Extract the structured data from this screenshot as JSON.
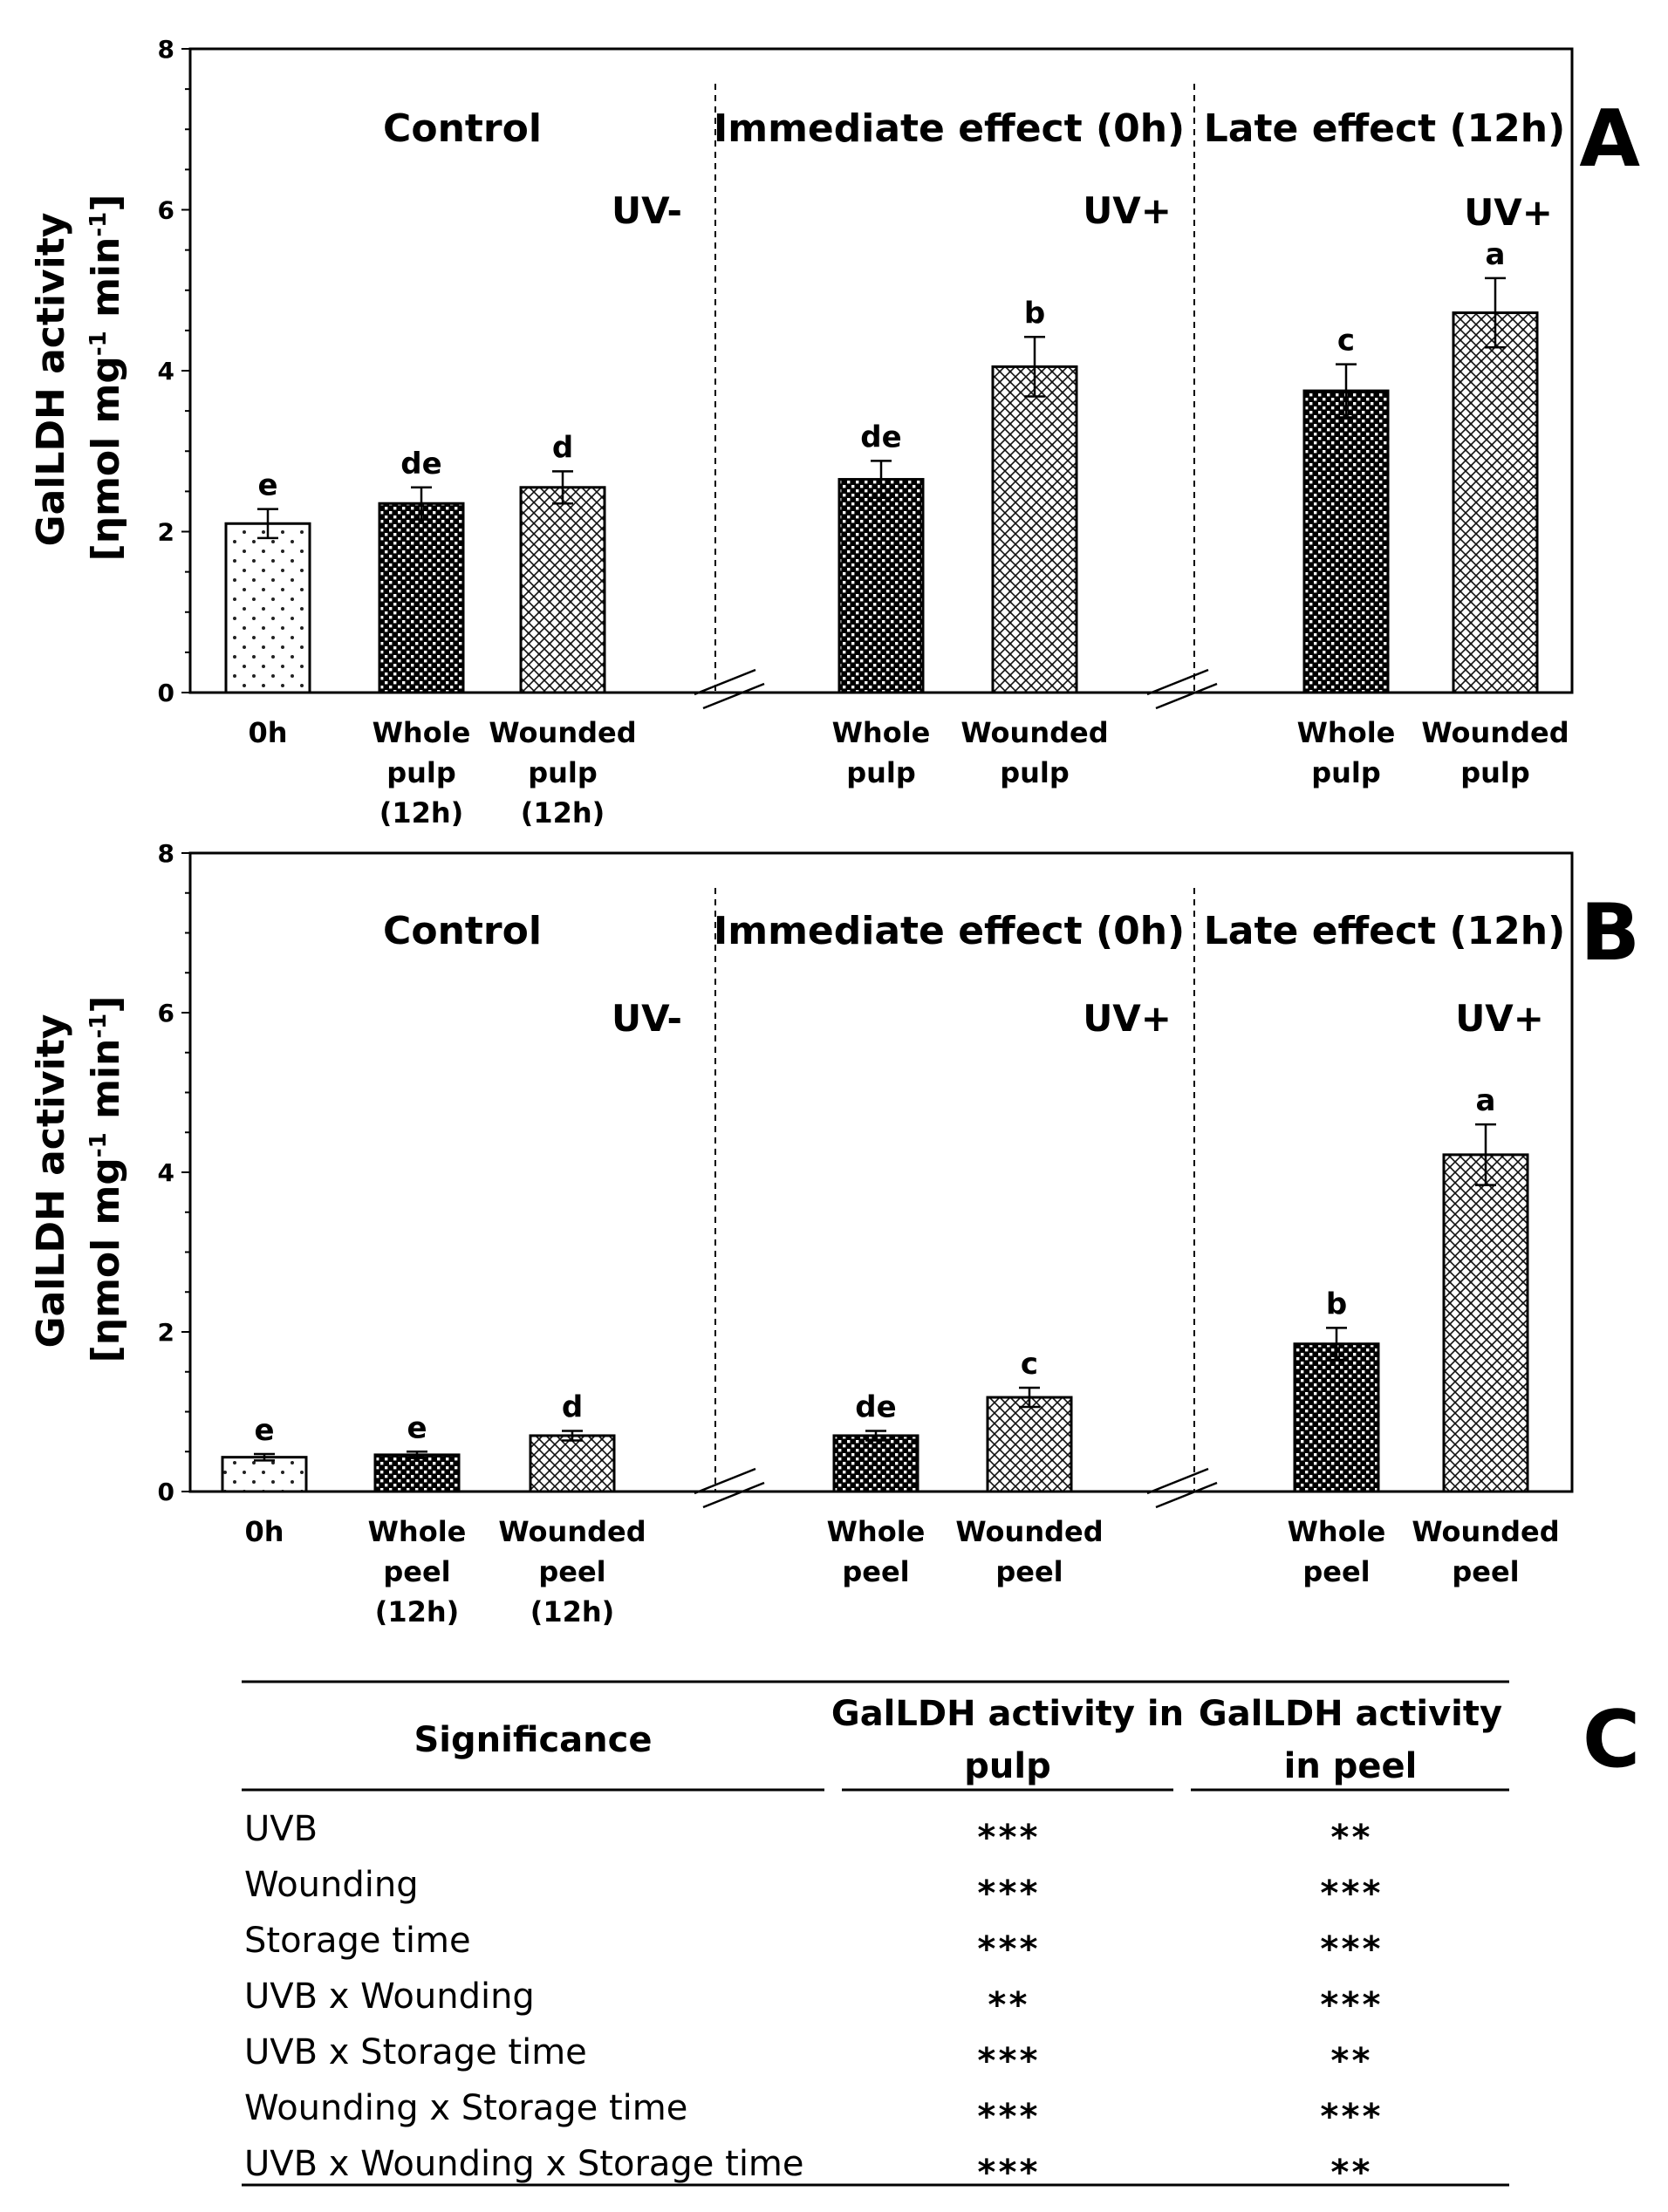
{
  "chart_data": [
    {
      "type": "bar",
      "panel_label": "A",
      "tissue": "pulp",
      "ylabel_line1": "GalLDH activity",
      "ylabel_line2": "[ηmol mg",
      "ylabel_sup1": "-1",
      "ylabel_mid": " min",
      "ylabel_sup2": "-1",
      "ylabel_end": "]",
      "ylim": [
        0,
        8
      ],
      "yticks": [
        "0",
        "2",
        "4",
        "6",
        "8"
      ],
      "sections": [
        {
          "title": "Control",
          "uv": "UV-"
        },
        {
          "title": "Immediate effect (0h)",
          "uv": "UV+"
        },
        {
          "title": "Late effect (12h)",
          "uv": "UV+"
        }
      ],
      "bars": [
        {
          "section": 0,
          "label": [
            "0h"
          ],
          "value": 2.1,
          "err": 0.18,
          "sig": "e",
          "pattern": "dots"
        },
        {
          "section": 0,
          "label": [
            "Whole",
            "pulp",
            "(12h)"
          ],
          "value": 2.35,
          "err": 0.2,
          "sig": "de",
          "pattern": "dense"
        },
        {
          "section": 0,
          "label": [
            "Wounded",
            "pulp",
            "(12h)"
          ],
          "value": 2.55,
          "err": 0.2,
          "sig": "d",
          "pattern": "cross"
        },
        {
          "section": 1,
          "label": [
            "Whole",
            "pulp"
          ],
          "value": 2.65,
          "err": 0.23,
          "sig": "de",
          "pattern": "dense"
        },
        {
          "section": 1,
          "label": [
            "Wounded",
            "pulp"
          ],
          "value": 4.05,
          "err": 0.37,
          "sig": "b",
          "pattern": "cross"
        },
        {
          "section": 2,
          "label": [
            "Whole",
            "pulp"
          ],
          "value": 3.75,
          "err": 0.33,
          "sig": "c",
          "pattern": "dense"
        },
        {
          "section": 2,
          "label": [
            "Wounded",
            "pulp"
          ],
          "value": 4.72,
          "err": 0.43,
          "sig": "a",
          "pattern": "cross"
        }
      ]
    },
    {
      "type": "bar",
      "panel_label": "B",
      "tissue": "peel",
      "ylabel_line1": "GalLDH activity",
      "ylabel_line2": "[ηmol mg",
      "ylabel_sup1": "-1",
      "ylabel_mid": " min",
      "ylabel_sup2": "-1",
      "ylabel_end": "]",
      "ylim": [
        0,
        8
      ],
      "yticks": [
        "0",
        "2",
        "4",
        "6",
        "8"
      ],
      "sections": [
        {
          "title": "Control",
          "uv": "UV-"
        },
        {
          "title": "Immediate effect (0h)",
          "uv": "UV+"
        },
        {
          "title": "Late effect (12h)",
          "uv": "UV+"
        }
      ],
      "bars": [
        {
          "section": 0,
          "label": [
            "0h"
          ],
          "value": 0.43,
          "err": 0.04,
          "sig": "e",
          "pattern": "dots"
        },
        {
          "section": 0,
          "label": [
            "Whole",
            "peel",
            "(12h)"
          ],
          "value": 0.46,
          "err": 0.04,
          "sig": "e",
          "pattern": "dense"
        },
        {
          "section": 0,
          "label": [
            "Wounded",
            "peel",
            "(12h)"
          ],
          "value": 0.7,
          "err": 0.06,
          "sig": "d",
          "pattern": "cross"
        },
        {
          "section": 1,
          "label": [
            "Whole",
            "peel"
          ],
          "value": 0.7,
          "err": 0.06,
          "sig": "de",
          "pattern": "dense"
        },
        {
          "section": 1,
          "label": [
            "Wounded",
            "peel"
          ],
          "value": 1.18,
          "err": 0.12,
          "sig": "c",
          "pattern": "cross"
        },
        {
          "section": 2,
          "label": [
            "Whole",
            "peel"
          ],
          "value": 1.85,
          "err": 0.2,
          "sig": "b",
          "pattern": "dense"
        },
        {
          "section": 2,
          "label": [
            "Wounded",
            "peel"
          ],
          "value": 4.22,
          "err": 0.38,
          "sig": "a",
          "pattern": "cross"
        }
      ]
    },
    {
      "type": "table",
      "panel_label": "C",
      "header": {
        "col0": "Significance",
        "col1_line1": "GalLDH activity in",
        "col1_line2": "pulp",
        "col2_line1": "GalLDH activity",
        "col2_line2": "in peel"
      },
      "rows": [
        {
          "factor": "UVB",
          "pulp": "***",
          "peel": "**"
        },
        {
          "factor": "Wounding",
          "pulp": "***",
          "peel": "***"
        },
        {
          "factor": "Storage time",
          "pulp": "***",
          "peel": "***"
        },
        {
          "factor": "UVB x Wounding",
          "pulp": "**",
          "peel": "***"
        },
        {
          "factor": "UVB x Storage time",
          "pulp": "***",
          "peel": "**"
        },
        {
          "factor": "Wounding x Storage time",
          "pulp": "***",
          "peel": "***"
        },
        {
          "factor": "UVB x Wounding x Storage time",
          "pulp": "***",
          "peel": "**"
        }
      ]
    }
  ]
}
